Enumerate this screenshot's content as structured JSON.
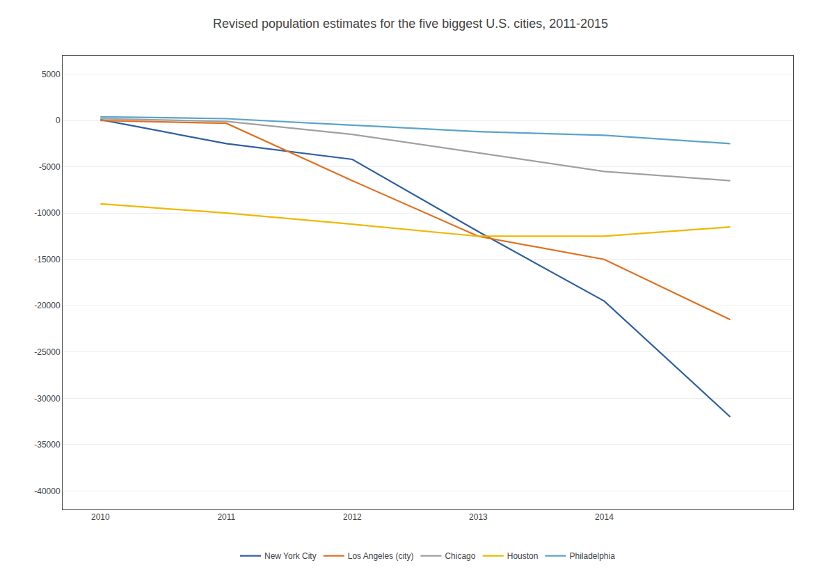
{
  "chart_data": {
    "type": "line",
    "title": "Revised population estimates for the five biggest U.S. cities, 2011-2015",
    "x": [
      2010,
      2011,
      2012,
      2013,
      2014,
      2015
    ],
    "series": [
      {
        "name": "New York City",
        "color": "#2e5fa3",
        "values": [
          100,
          -2500,
          -4200,
          -12000,
          -19500,
          -32000
        ]
      },
      {
        "name": "Los Angeles (city)",
        "color": "#e07020",
        "values": [
          0,
          -300,
          -6500,
          -12500,
          -15000,
          -21500
        ]
      },
      {
        "name": "Chicago",
        "color": "#a0a0a0",
        "values": [
          200,
          -100,
          -1500,
          -3500,
          -5500,
          -6500
        ]
      },
      {
        "name": "Houston",
        "color": "#f0b800",
        "values": [
          -9000,
          -10000,
          -11200,
          -12500,
          -12500,
          -11500
        ]
      },
      {
        "name": "Philadelphia",
        "color": "#5ba3c9",
        "values": [
          400,
          200,
          -500,
          -1200,
          -1600,
          -2500
        ]
      }
    ],
    "xlim": [
      2009.7,
      2015.5
    ],
    "xticks": [
      2010,
      2011,
      2012,
      2013,
      2014
    ],
    "ylim": [
      -42000,
      7000
    ],
    "yticks": [
      5000,
      0,
      -5000,
      -10000,
      -15000,
      -20000,
      -25000,
      -30000,
      -35000,
      -40000
    ],
    "grid": true,
    "legend": "bottom"
  }
}
